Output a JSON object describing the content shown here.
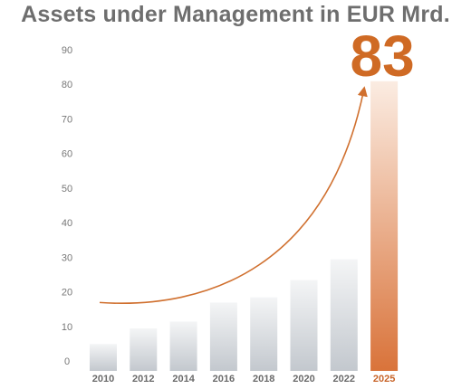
{
  "chart_data": {
    "type": "bar",
    "title": "Assets under Management in EUR Mrd.",
    "categories": [
      "2010",
      "2012",
      "2014",
      "2016",
      "2018",
      "2020",
      "2022",
      "2025"
    ],
    "values": [
      7,
      11.5,
      13.5,
      19,
      20.5,
      25.5,
      31.5,
      83
    ],
    "highlight_label": "83",
    "highlight_index": 7,
    "ylim": [
      0,
      90
    ],
    "yticks": [
      0,
      10,
      20,
      30,
      40,
      50,
      60,
      70,
      80,
      90
    ],
    "grid": false,
    "arrow": {
      "from_value": 19,
      "to_value": 81
    },
    "colors": {
      "bar_top": "#f4f5f6",
      "bar_bottom": "#c3c8ce",
      "highlight_top": "#fbece2",
      "highlight_bottom": "#d9733a",
      "arrow": "#d0702f",
      "title": "#6e6e6e",
      "highlight_text": "#cf6a24"
    }
  }
}
